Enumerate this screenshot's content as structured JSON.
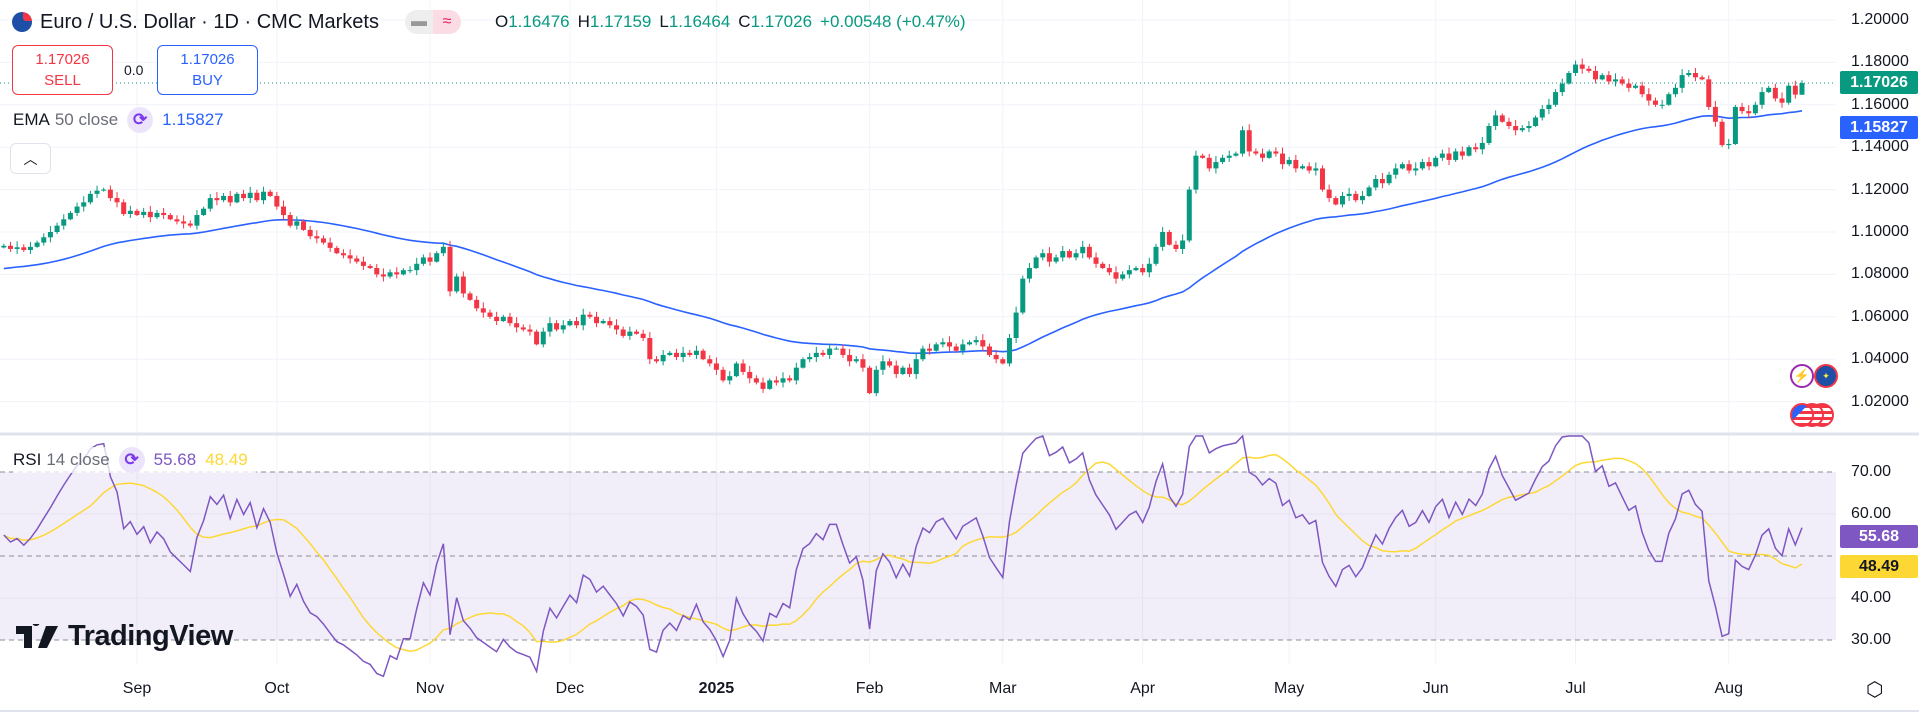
{
  "header": {
    "symbol_title": "Euro / U.S. Dollar · 1D · CMC Markets",
    "symbol_icon": "eur-usd-flags-icon",
    "ohlc": {
      "o_label": "O",
      "o": "1.16476",
      "h_label": "H",
      "h": "1.17159",
      "l_label": "L",
      "l": "1.16464",
      "c_label": "C",
      "c": "1.17026",
      "change": "+0.00548 (+0.47%)"
    }
  },
  "trade": {
    "sell_price": "1.17026",
    "sell_label": "SELL",
    "spread": "0.0",
    "buy_price": "1.17026",
    "buy_label": "BUY"
  },
  "indicators": {
    "ema": {
      "name": "EMA",
      "params": "50 close",
      "value": "1.15827",
      "color": "#2962ff"
    },
    "rsi": {
      "name": "RSI",
      "params": "14 close",
      "value": "55.68",
      "ma_value": "48.49",
      "color": "#7e57c2",
      "ma_color": "#fdd835"
    }
  },
  "branding": {
    "logo_text": "TradingView"
  },
  "colors": {
    "up": "#089981",
    "down": "#f23645",
    "ema": "#2962ff",
    "rsi": "#7e57c2",
    "rsi_ma": "#fdd835"
  },
  "chart_data": [
    {
      "type": "candlestick",
      "title": "Euro / U.S. Dollar · 1D · CMC Markets",
      "grid": true,
      "ylim": [
        1.0,
        1.21
      ],
      "price_axis": {
        "ticks": [
          "1.20000",
          "1.18000",
          "1.16000",
          "1.14000",
          "1.12000",
          "1.10000",
          "1.08000",
          "1.06000",
          "1.04000",
          "1.02000"
        ]
      },
      "last_price_label": "1.17026",
      "ema_label": "1.15827",
      "last_bar": {
        "open": 1.16476,
        "high": 1.17159,
        "low": 1.16464,
        "close": 1.17026
      },
      "x_labels": [
        {
          "label": "Sep",
          "date": "2024-09-02"
        },
        {
          "label": "Oct",
          "date": "2024-10-01"
        },
        {
          "label": "Nov",
          "date": "2024-11-01"
        },
        {
          "label": "Dec",
          "date": "2024-12-02"
        },
        {
          "label": "2025",
          "date": "2025-01-01",
          "bold": true
        },
        {
          "label": "Feb",
          "date": "2025-02-03"
        },
        {
          "label": "Mar",
          "date": "2025-03-03"
        },
        {
          "label": "Apr",
          "date": "2025-04-01"
        },
        {
          "label": "May",
          "date": "2025-05-01"
        },
        {
          "label": "Jun",
          "date": "2025-06-02"
        },
        {
          "label": "Jul",
          "date": "2025-07-01"
        },
        {
          "label": "Aug",
          "date": "2025-08-01"
        }
      ],
      "closes": [
        1.0935,
        1.092,
        1.0928,
        1.0915,
        1.093,
        1.095,
        1.0975,
        1.1,
        1.103,
        1.106,
        1.109,
        1.112,
        1.114,
        1.118,
        1.1195,
        1.12,
        1.116,
        1.114,
        1.1085,
        1.11,
        1.108,
        1.1095,
        1.107,
        1.109,
        1.108,
        1.106,
        1.105,
        1.104,
        1.103,
        1.108,
        1.111,
        1.116,
        1.115,
        1.117,
        1.114,
        1.118,
        1.116,
        1.1185,
        1.115,
        1.119,
        1.117,
        1.112,
        1.108,
        1.103,
        1.105,
        1.101,
        1.098,
        1.097,
        1.095,
        1.0925,
        1.09,
        1.089,
        1.0875,
        1.086,
        1.084,
        1.083,
        1.08,
        1.079,
        1.081,
        1.08,
        1.082,
        1.082,
        1.085,
        1.088,
        1.086,
        1.09,
        1.093,
        1.072,
        1.079,
        1.071,
        1.068,
        1.064,
        1.062,
        1.06,
        1.058,
        1.06,
        1.057,
        1.055,
        1.054,
        1.053,
        1.047,
        1.053,
        1.057,
        1.054,
        1.056,
        1.058,
        1.056,
        1.061,
        1.06,
        1.057,
        1.058,
        1.056,
        1.054,
        1.051,
        1.053,
        1.052,
        1.05,
        1.04,
        1.039,
        1.042,
        1.043,
        1.041,
        1.043,
        1.042,
        1.044,
        1.04,
        1.038,
        1.035,
        1.03,
        1.032,
        1.038,
        1.034,
        1.031,
        1.029,
        1.026,
        1.03,
        1.029,
        1.031,
        1.03,
        1.036,
        1.04,
        1.041,
        1.043,
        1.042,
        1.045,
        1.045,
        1.042,
        1.039,
        1.04,
        1.036,
        1.024,
        1.035,
        1.039,
        1.037,
        1.033,
        1.036,
        1.033,
        1.04,
        1.045,
        1.044,
        1.047,
        1.048,
        1.046,
        1.044,
        1.047,
        1.048,
        1.049,
        1.046,
        1.042,
        1.04,
        1.038,
        1.05,
        1.062,
        1.078,
        1.083,
        1.088,
        1.09,
        1.086,
        1.088,
        1.091,
        1.088,
        1.09,
        1.093,
        1.088,
        1.085,
        1.083,
        1.081,
        1.078,
        1.08,
        1.082,
        1.083,
        1.081,
        1.085,
        1.093,
        1.1,
        1.094,
        1.092,
        1.096,
        1.12,
        1.136,
        1.135,
        1.13,
        1.133,
        1.135,
        1.136,
        1.137,
        1.148,
        1.138,
        1.137,
        1.135,
        1.138,
        1.137,
        1.132,
        1.134,
        1.13,
        1.131,
        1.129,
        1.13,
        1.12,
        1.116,
        1.113,
        1.117,
        1.118,
        1.115,
        1.117,
        1.121,
        1.125,
        1.123,
        1.127,
        1.13,
        1.132,
        1.129,
        1.13,
        1.133,
        1.131,
        1.135,
        1.137,
        1.134,
        1.138,
        1.136,
        1.14,
        1.139,
        1.142,
        1.15,
        1.155,
        1.152,
        1.15,
        1.148,
        1.149,
        1.15,
        1.154,
        1.158,
        1.16,
        1.166,
        1.17,
        1.175,
        1.179,
        1.177,
        1.176,
        1.172,
        1.174,
        1.171,
        1.172,
        1.17,
        1.168,
        1.169,
        1.165,
        1.162,
        1.16,
        1.16,
        1.165,
        1.168,
        1.174,
        1.175,
        1.173,
        1.172,
        1.159,
        1.152,
        1.141,
        1.1415,
        1.159,
        1.157,
        1.156,
        1.16,
        1.166,
        1.168,
        1.163,
        1.161,
        1.169,
        1.1648,
        1.17026
      ],
      "ema_period": 50
    },
    {
      "type": "line",
      "title": "RSI 14 close",
      "ylim": [
        25,
        80
      ],
      "levels": [
        70,
        50,
        30
      ],
      "y_ticks": [
        "70.00",
        "60.00",
        "40.00",
        "30.00"
      ],
      "rsi_period": 14,
      "ma_period": 14,
      "rsi_label": "55.68",
      "ma_label": "48.49"
    }
  ]
}
